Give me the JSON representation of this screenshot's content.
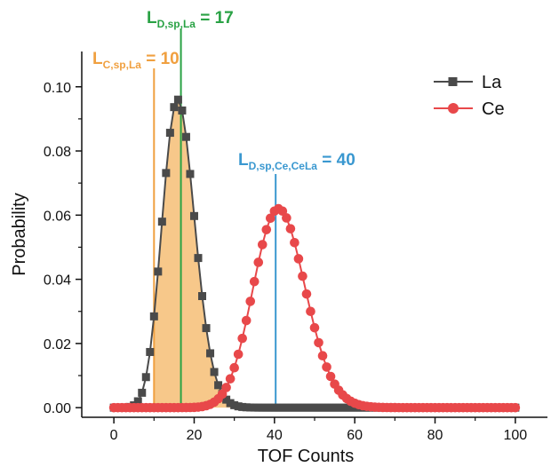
{
  "chart_data": {
    "type": "line",
    "xlabel": "TOF Counts",
    "ylabel": "Probability",
    "xlim": [
      -8,
      108
    ],
    "ylim": [
      -0.003,
      0.111
    ],
    "x_ticks": [
      0,
      20,
      40,
      60,
      80,
      100
    ],
    "x_tick_labels": [
      "0",
      "20",
      "40",
      "60",
      "80",
      "100"
    ],
    "y_ticks": [
      0.0,
      0.02,
      0.04,
      0.06,
      0.08,
      0.1
    ],
    "y_tick_labels": [
      "0.00",
      "0.02",
      "0.04",
      "0.06",
      "0.08",
      "0.10"
    ],
    "grid": false,
    "legend_position": "top-right",
    "series": [
      {
        "name": "La",
        "marker": "square",
        "color": "#4a4a4a",
        "mean": 16.4,
        "distribution": "poisson",
        "x_range": [
          0,
          100
        ],
        "peak_y": 0.096
      },
      {
        "name": "Ce",
        "marker": "circle",
        "color": "#e8484a",
        "mean": 41.5,
        "distribution": "poisson",
        "x_range": [
          0,
          100
        ],
        "peak_y": 0.062
      }
    ],
    "shaded_region": {
      "series": "La",
      "x_from": 10,
      "x_to": 100,
      "color": "#f7c88a"
    },
    "annotations": [
      {
        "id": "lc",
        "x": 10,
        "label_main": "L",
        "label_sub": "C,sp,La",
        "label_suffix": " = 10",
        "color": "#f0a040"
      },
      {
        "id": "ld-la",
        "x": 16.7,
        "label_main": "L",
        "label_sub": "D,sp,La",
        "label_suffix": " = 17",
        "color": "#2aa245"
      },
      {
        "id": "ld-ce",
        "x": 40.3,
        "label_main": "L",
        "label_sub": "D,sp,Ce,CeLa",
        "label_suffix": " = 40",
        "color": "#3a98d0"
      }
    ]
  }
}
